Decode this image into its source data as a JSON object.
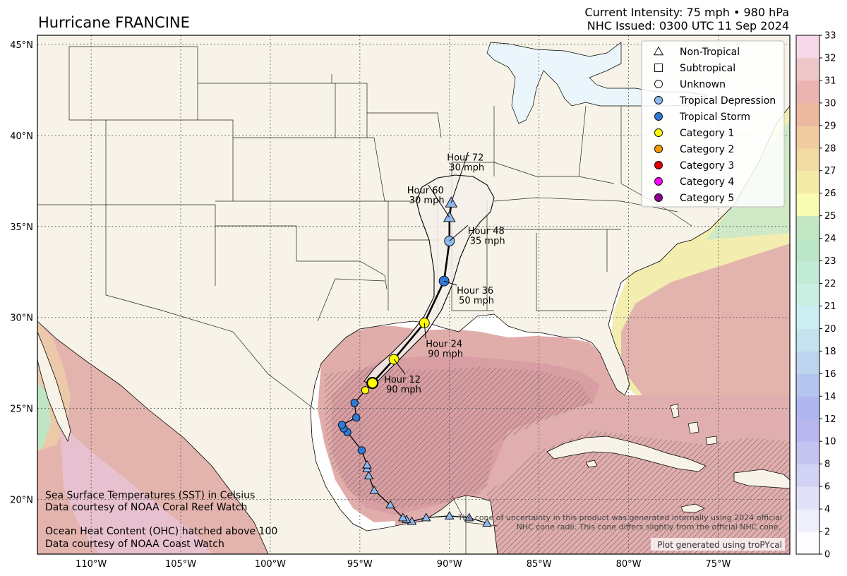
{
  "storm": {
    "title": "Hurricane FRANCINE",
    "intensity_line": "Current Intensity: 75 mph • 980 hPa",
    "issued_line": "NHC Issued: 0300 UTC 11 Sep 2024"
  },
  "map": {
    "lon_ticks": [
      "110°W",
      "105°W",
      "100°W",
      "95°W",
      "90°W",
      "85°W",
      "80°W",
      "75°W"
    ],
    "lat_ticks": [
      "45°N",
      "40°N",
      "35°N",
      "30°N",
      "25°N",
      "20°N"
    ],
    "lon_values": [
      -110,
      -105,
      -100,
      -95,
      -90,
      -85,
      -80,
      -75
    ],
    "lat_values": [
      45,
      40,
      35,
      30,
      25,
      20
    ],
    "lon_range": [
      -113,
      -71
    ],
    "lat_range": [
      17,
      45.5
    ],
    "colors": {
      "land": "#f8f3e8",
      "water": "#ffffff",
      "sst_warm": "#e3b4ad",
      "sst_hot": "#d9a0a4",
      "sst_mid": "#ecc9a8",
      "sst_yellow": "#f3eeb0",
      "sst_green": "#cfe9c7",
      "cone_fill": "#f5efea"
    }
  },
  "legend": {
    "items": [
      {
        "label": "Non-Tropical",
        "symbol": "triangle",
        "color": "#ffffff"
      },
      {
        "label": "Subtropical",
        "symbol": "square",
        "color": "#ffffff"
      },
      {
        "label": "Unknown",
        "symbol": "circle",
        "color": "#ffffff"
      },
      {
        "label": "Tropical Depression",
        "symbol": "circle",
        "color": "#8fb8ec"
      },
      {
        "label": "Tropical Storm",
        "symbol": "circle",
        "color": "#2f7bd6"
      },
      {
        "label": "Category 1",
        "symbol": "circle",
        "color": "#ffff00"
      },
      {
        "label": "Category 2",
        "symbol": "circle",
        "color": "#f59a00"
      },
      {
        "label": "Category 3",
        "symbol": "circle",
        "color": "#e00000"
      },
      {
        "label": "Category 4",
        "symbol": "circle",
        "color": "#ff00ff"
      },
      {
        "label": "Category 5",
        "symbol": "circle",
        "color": "#8b0090"
      }
    ]
  },
  "colorbar": {
    "ticks": [
      "0",
      "2",
      "4",
      "6",
      "8",
      "10",
      "12",
      "14",
      "16",
      "18",
      "20",
      "21",
      "22",
      "23",
      "24",
      "25",
      "26",
      "27",
      "28",
      "29",
      "30",
      "31",
      "32",
      "33"
    ],
    "colors": [
      "#fdfdff",
      "#efeffb",
      "#e1e1f7",
      "#d2d2f4",
      "#c4c4f1",
      "#b8b8ef",
      "#b0b6ef",
      "#b5c6ee",
      "#bcd4ee",
      "#c5e3ef",
      "#cdeff1",
      "#c9efe3",
      "#c2ebd5",
      "#bce6c8",
      "#c2e7c2",
      "#f9fdb4",
      "#f5eba8",
      "#f2dba2",
      "#efcb9f",
      "#ecb9a0",
      "#ebb4b0",
      "#eec6c7",
      "#f6d8e8"
    ]
  },
  "forecast_points": [
    {
      "label": "Hour 12",
      "wind": "90 mph",
      "lon": -93.1,
      "lat": 27.7,
      "color": "#ffff00",
      "shape": "circle"
    },
    {
      "label": "Hour 24",
      "wind": "90 mph",
      "lon": -91.4,
      "lat": 29.7,
      "color": "#ffff00",
      "shape": "circle"
    },
    {
      "label": "Hour 36",
      "wind": "50 mph",
      "lon": -90.3,
      "lat": 32.0,
      "color": "#2f7bd6",
      "shape": "circle"
    },
    {
      "label": "Hour 48",
      "wind": "35 mph",
      "lon": -90.0,
      "lat": 34.2,
      "color": "#8fb8ec",
      "shape": "circle"
    },
    {
      "label": "Hour 60",
      "wind": "30 mph",
      "lon": -90.0,
      "lat": 35.5,
      "color": "#8fb8ec",
      "shape": "triangle"
    },
    {
      "label": "Hour 72",
      "wind": "30 mph",
      "lon": -89.9,
      "lat": 36.3,
      "color": "#8fb8ec",
      "shape": "triangle"
    }
  ],
  "past_track": [
    {
      "lon": -87.9,
      "lat": 18.7,
      "color": "#8fb8ec",
      "shape": "triangle"
    },
    {
      "lon": -88.9,
      "lat": 19.0,
      "color": "#8fb8ec",
      "shape": "triangle"
    },
    {
      "lon": -90.0,
      "lat": 19.1,
      "color": "#8fb8ec",
      "shape": "triangle"
    },
    {
      "lon": -91.3,
      "lat": 19.0,
      "color": "#8fb8ec",
      "shape": "triangle"
    },
    {
      "lon": -92.1,
      "lat": 18.8,
      "color": "#8fb8ec",
      "shape": "triangle"
    },
    {
      "lon": -92.4,
      "lat": 18.9,
      "color": "#8fb8ec",
      "shape": "triangle"
    },
    {
      "lon": -92.6,
      "lat": 19.0,
      "color": "#8fb8ec",
      "shape": "triangle"
    },
    {
      "lon": -93.3,
      "lat": 19.7,
      "color": "#8fb8ec",
      "shape": "triangle"
    },
    {
      "lon": -94.2,
      "lat": 20.5,
      "color": "#8fb8ec",
      "shape": "triangle"
    },
    {
      "lon": -94.5,
      "lat": 21.3,
      "color": "#8fb8ec",
      "shape": "triangle"
    },
    {
      "lon": -94.6,
      "lat": 21.7,
      "color": "#8fb8ec",
      "shape": "triangle"
    },
    {
      "lon": -94.6,
      "lat": 21.9,
      "color": "#8fb8ec",
      "shape": "triangle"
    },
    {
      "lon": -94.9,
      "lat": 22.7,
      "color": "#2f7bd6",
      "shape": "circle"
    },
    {
      "lon": -95.7,
      "lat": 23.7,
      "color": "#2f7bd6",
      "shape": "circle"
    },
    {
      "lon": -95.9,
      "lat": 23.9,
      "color": "#2f7bd6",
      "shape": "circle"
    },
    {
      "lon": -96.0,
      "lat": 24.1,
      "color": "#2f7bd6",
      "shape": "circle"
    },
    {
      "lon": -95.2,
      "lat": 24.5,
      "color": "#2f7bd6",
      "shape": "circle"
    },
    {
      "lon": -95.3,
      "lat": 25.3,
      "color": "#2f7bd6",
      "shape": "circle"
    },
    {
      "lon": -94.7,
      "lat": 26.0,
      "color": "#ffff00",
      "shape": "circle"
    },
    {
      "lon": -94.3,
      "lat": 26.4,
      "color": "#ffff00",
      "shape": "circle"
    }
  ],
  "current_position": {
    "lon": -94.3,
    "lat": 26.4,
    "color": "#ffff00"
  },
  "notes": {
    "sst_line1": "Sea Surface Temperatures (SST) in Celsius",
    "sst_line2": "Data courtesy of NOAA Coral Reef Watch",
    "ohc_line1": "Ocean Heat Content (OHC) hatched above 100",
    "ohc_line2": "Data courtesy of NOAA Coast Watch",
    "cone_line1": "The cone of uncertainty in this product was generated internally using 2024 official",
    "cone_line2": "NHC cone radii. This cone differs slightly from the official NHC cone.",
    "credit": "Plot generated using troPYcal"
  }
}
